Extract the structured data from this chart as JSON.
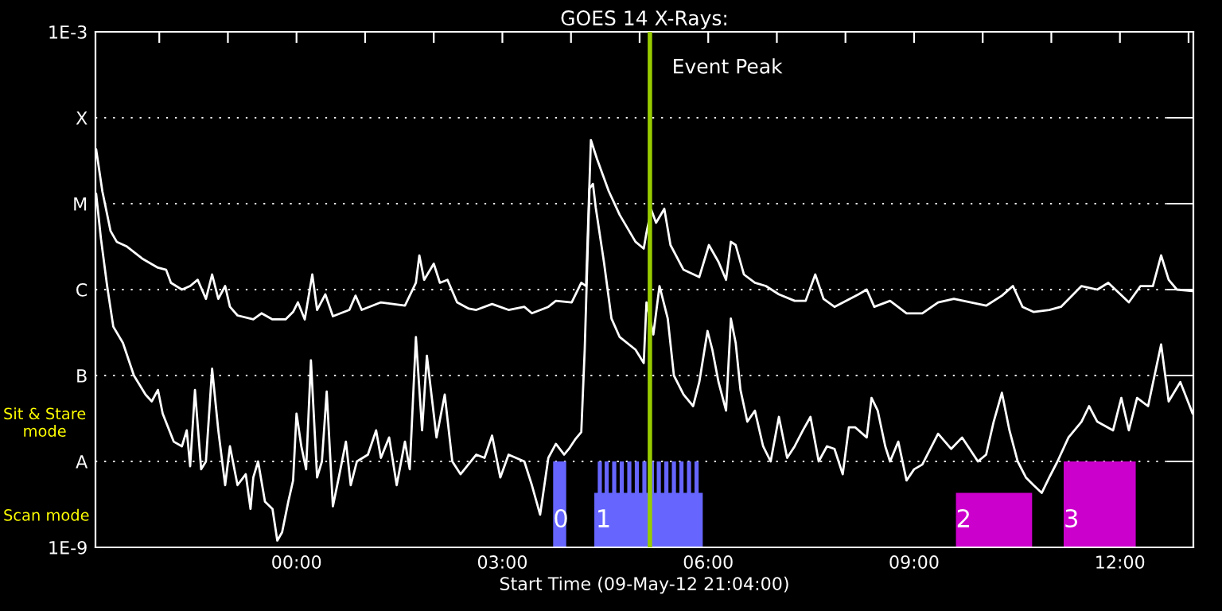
{
  "chart_data": {
    "type": "line",
    "title": "GOES 14 X-Rays:",
    "xlabel": "Start Time (09-May-12 21:04:00)",
    "log": "y",
    "grid": "y",
    "marker": "none",
    "line_style": "solid",
    "xlim": [
      -2.93,
      13.07
    ],
    "xticks": [
      {
        "value": -2,
        "label": null
      },
      {
        "value": -1,
        "label": null
      },
      {
        "value": 0,
        "label": "00:00"
      },
      {
        "value": 1,
        "label": null
      },
      {
        "value": 2,
        "label": null
      },
      {
        "value": 3,
        "label": "03:00"
      },
      {
        "value": 4,
        "label": null
      },
      {
        "value": 5,
        "label": null
      },
      {
        "value": 6,
        "label": "06:00"
      },
      {
        "value": 7,
        "label": null
      },
      {
        "value": 8,
        "label": null
      },
      {
        "value": 9,
        "label": "09:00"
      },
      {
        "value": 10,
        "label": null
      },
      {
        "value": 11,
        "label": null
      },
      {
        "value": 12,
        "label": "12:00"
      },
      {
        "value": 13,
        "label": null
      }
    ],
    "ylim": [
      1e-09,
      0.001
    ],
    "yticks": [
      {
        "value": 1e-09,
        "label": "1E-9"
      },
      {
        "value": 1e-08,
        "label": "A"
      },
      {
        "value": 1e-07,
        "label": "B"
      },
      {
        "value": 1e-06,
        "label": "C"
      },
      {
        "value": 1e-05,
        "label": "M"
      },
      {
        "value": 0.0001,
        "label": "X"
      },
      {
        "value": 0.001,
        "label": "1E-3"
      }
    ],
    "ref_lines": [
      {
        "axis": "x",
        "value": 5.15,
        "label": "Event Peak",
        "color": "#99cc00"
      }
    ],
    "annotations": [
      "Sit & Stare\nmode",
      "Scan mode",
      {
        "text": "0",
        "x": 3.74,
        "y": 1.5e-09
      },
      {
        "text": "1",
        "x": 4.36,
        "y": 1.5e-09
      },
      {
        "text": "2",
        "x": 9.61,
        "y": 1.5e-09
      },
      {
        "text": "3",
        "x": 11.18,
        "y": 1.5e-09
      }
    ],
    "series": [
      {
        "type": "area",
        "color": "#6666ff",
        "x": [
          3.74,
          3.74,
          3.93,
          3.93,
          4.34,
          4.34,
          4.39,
          4.39,
          4.45,
          4.45,
          4.49,
          4.49,
          4.55,
          4.55,
          4.6,
          4.6,
          4.66,
          4.66,
          4.71,
          4.71,
          4.77,
          4.77,
          4.82,
          4.82,
          4.88,
          4.88,
          4.93,
          4.93,
          4.99,
          4.99,
          5.04,
          5.04,
          5.1,
          5.1,
          5.15,
          5.15,
          5.21,
          5.21,
          5.25,
          5.25,
          5.31,
          5.31,
          5.36,
          5.36,
          5.42,
          5.42,
          5.47,
          5.47,
          5.53,
          5.53,
          5.58,
          5.58,
          5.64,
          5.64,
          5.69,
          5.69,
          5.75,
          5.75,
          5.8,
          5.8,
          5.86,
          5.86,
          5.92,
          5.92
        ],
        "values": [
          1e-09,
          1e-08,
          1e-08,
          1e-09,
          1e-09,
          4.3e-09,
          4.3e-09,
          1e-08,
          1e-08,
          4.3e-09,
          4.3e-09,
          1e-08,
          1e-08,
          4.3e-09,
          4.3e-09,
          1e-08,
          1e-08,
          4.3e-09,
          4.3e-09,
          1e-08,
          1e-08,
          4.3e-09,
          4.3e-09,
          1e-08,
          1e-08,
          4.3e-09,
          4.3e-09,
          1e-08,
          1e-08,
          4.3e-09,
          4.3e-09,
          1e-08,
          1e-08,
          4.3e-09,
          4.3e-09,
          1e-08,
          1e-08,
          4.3e-09,
          4.3e-09,
          1e-08,
          1e-08,
          4.3e-09,
          4.3e-09,
          1e-08,
          1e-08,
          4.3e-09,
          4.3e-09,
          1e-08,
          1e-08,
          4.3e-09,
          4.3e-09,
          1e-08,
          1e-08,
          4.3e-09,
          4.3e-09,
          1e-08,
          1e-08,
          4.3e-09,
          4.3e-09,
          1e-08,
          1e-08,
          4.3e-09,
          4.3e-09,
          1e-09
        ]
      },
      {
        "type": "area",
        "color": "#cc00cc",
        "x": [
          9.61,
          9.61,
          10.72,
          10.72,
          11.18,
          11.18,
          12.23,
          12.23
        ],
        "values": [
          1e-09,
          4.3e-09,
          4.3e-09,
          1e-09,
          1e-09,
          1e-08,
          1e-08,
          1e-09
        ]
      },
      {
        "color": "#ffffff",
        "x": [
          -2.92,
          -2.83,
          -2.71,
          -2.62,
          -2.48,
          -2.25,
          -2.02,
          -1.9,
          -1.83,
          -1.67,
          -1.55,
          -1.44,
          -1.32,
          -1.23,
          -1.14,
          -1.04,
          -0.97,
          -0.86,
          -0.63,
          -0.51,
          -0.35,
          -0.16,
          -0.05,
          0.02,
          0.12,
          0.23,
          0.3,
          0.42,
          0.53,
          0.77,
          0.86,
          0.95,
          1.23,
          1.58,
          1.74,
          1.79,
          1.86,
          2.0,
          2.09,
          2.2,
          2.34,
          2.51,
          2.62,
          2.85,
          3.09,
          3.32,
          3.43,
          3.67,
          3.78,
          4.01,
          4.15,
          4.22,
          4.29,
          4.38,
          4.55,
          4.71,
          4.94,
          5.06,
          5.1,
          5.17,
          5.24,
          5.36,
          5.45,
          5.64,
          5.87,
          6.01,
          6.15,
          6.26,
          6.33,
          6.4,
          6.52,
          6.68,
          6.84,
          7.03,
          7.26,
          7.42,
          7.56,
          7.68,
          7.84,
          8.19,
          8.31,
          8.42,
          8.65,
          8.89,
          9.12,
          9.35,
          9.58,
          10.05,
          10.28,
          10.44,
          10.58,
          10.74,
          10.97,
          11.14,
          11.44,
          11.67,
          11.83,
          12.13,
          12.3,
          12.48,
          12.6,
          12.71,
          12.83,
          13.06
        ],
        "values": [
          4.3e-05,
          1.4e-05,
          4.8e-06,
          3.6e-06,
          3.2e-06,
          2.3e-06,
          1.8e-06,
          1.7e-06,
          1.2e-06,
          1e-06,
          1.1e-06,
          1.3e-06,
          7.8e-07,
          1.5e-06,
          7.8e-07,
          1.1e-06,
          6.3e-07,
          5e-07,
          4.5e-07,
          5.3e-07,
          4.5e-07,
          4.5e-07,
          5.5e-07,
          7.1e-07,
          4.5e-07,
          1.5e-06,
          5.8e-07,
          8.8e-07,
          4.9e-07,
          5.8e-07,
          8.5e-07,
          5.8e-07,
          7.1e-07,
          6.5e-07,
          1.2e-06,
          2.5e-06,
          1.3e-06,
          2e-06,
          1.2e-06,
          1.3e-06,
          7.1e-07,
          6e-07,
          5.8e-07,
          6.8e-07,
          5.8e-07,
          6.3e-07,
          5.3e-07,
          6.3e-07,
          7.4e-07,
          7.1e-07,
          1.2e-06,
          1.1e-06,
          5.5e-05,
          3.3e-05,
          1.4e-05,
          7.4e-06,
          3.6e-06,
          3e-06,
          4.6e-06,
          8.5e-06,
          6e-06,
          8.7e-06,
          3.3e-06,
          1.7e-06,
          1.4e-06,
          3.3e-06,
          2.1e-06,
          1.3e-06,
          3.6e-06,
          3.3e-06,
          1.5e-06,
          1.2e-06,
          1.1e-06,
          8.8e-07,
          7.4e-07,
          7.4e-07,
          1.5e-06,
          7.8e-07,
          6.3e-07,
          8.8e-07,
          1e-06,
          6.3e-07,
          7.4e-07,
          5.3e-07,
          5.3e-07,
          7.1e-07,
          7.8e-07,
          6.5e-07,
          8.5e-07,
          1.1e-06,
          6.3e-07,
          5.5e-07,
          5.8e-07,
          6.3e-07,
          1.1e-06,
          1e-06,
          1.2e-06,
          7.1e-07,
          1.1e-06,
          1.1e-06,
          2.5e-06,
          1.3e-06,
          1e-06,
          9.6e-07
        ]
      },
      {
        "color": "#ffffff",
        "x": [
          -2.92,
          -2.85,
          -2.76,
          -2.67,
          -2.53,
          -2.37,
          -2.2,
          -2.11,
          -2.02,
          -1.95,
          -1.79,
          -1.67,
          -1.6,
          -1.55,
          -1.48,
          -1.39,
          -1.32,
          -1.23,
          -1.14,
          -1.04,
          -0.97,
          -0.86,
          -0.74,
          -0.67,
          -0.63,
          -0.56,
          -0.46,
          -0.35,
          -0.28,
          -0.21,
          -0.12,
          -0.05,
          0.0,
          0.07,
          0.14,
          0.21,
          0.3,
          0.37,
          0.44,
          0.53,
          0.63,
          0.72,
          0.79,
          0.88,
          1.04,
          1.16,
          1.23,
          1.35,
          1.46,
          1.58,
          1.65,
          1.74,
          1.83,
          1.9,
          2.04,
          2.16,
          2.27,
          2.39,
          2.62,
          2.74,
          2.85,
          2.97,
          3.09,
          3.32,
          3.43,
          3.55,
          3.67,
          3.78,
          3.9,
          3.97,
          4.06,
          4.15,
          4.2,
          4.27,
          4.32,
          4.36,
          4.48,
          4.59,
          4.71,
          4.94,
          5.06,
          5.1,
          5.2,
          5.29,
          5.41,
          5.5,
          5.64,
          5.78,
          5.87,
          5.99,
          6.06,
          6.15,
          6.26,
          6.33,
          6.4,
          6.47,
          6.57,
          6.68,
          6.8,
          6.91,
          7.03,
          7.15,
          7.26,
          7.38,
          7.49,
          7.61,
          7.73,
          7.84,
          7.96,
          8.05,
          8.14,
          8.31,
          8.38,
          8.47,
          8.58,
          8.65,
          8.77,
          8.89,
          9.0,
          9.12,
          9.35,
          9.54,
          9.7,
          9.81,
          9.93,
          10.05,
          10.16,
          10.28,
          10.39,
          10.51,
          10.63,
          10.74,
          10.86,
          10.97,
          11.09,
          11.25,
          11.44,
          11.55,
          11.67,
          11.9,
          12.02,
          12.13,
          12.25,
          12.41,
          12.6,
          12.71,
          12.88,
          13.06
        ],
        "values": [
          1.3e-05,
          3.9e-06,
          1.1e-06,
          3.7e-07,
          2.4e-07,
          1e-07,
          6e-08,
          5e-08,
          6.8e-08,
          3.6e-08,
          1.7e-08,
          1.5e-08,
          2.3e-08,
          8.8e-09,
          6.8e-08,
          8.1e-09,
          1e-08,
          1.2e-07,
          2.3e-08,
          5.3e-09,
          1.5e-08,
          5.3e-09,
          7.1e-09,
          2.8e-09,
          6.5e-09,
          1e-08,
          3.4e-09,
          2.8e-09,
          1.2e-09,
          1.5e-09,
          3.4e-09,
          6e-09,
          3.6e-08,
          1.5e-08,
          8.1e-09,
          1.5e-07,
          6.5e-09,
          1e-08,
          6.5e-08,
          3e-09,
          7.4e-09,
          1.7e-08,
          5.3e-09,
          1e-08,
          1.2e-08,
          2.3e-08,
          1.1e-08,
          1.9e-08,
          5.3e-09,
          1.7e-08,
          8.1e-09,
          2.8e-07,
          2.3e-08,
          1.7e-07,
          1.9e-08,
          6e-08,
          1e-08,
          7.1e-09,
          1.2e-08,
          1.1e-08,
          2e-08,
          6.5e-09,
          1.2e-08,
          1e-08,
          5.3e-09,
          2.4e-09,
          1.1e-08,
          1.6e-08,
          1.2e-08,
          1.4e-08,
          1.8e-08,
          2.2e-08,
          2e-07,
          1.5e-05,
          1.7e-05,
          9.1e-06,
          2.1e-06,
          4.6e-07,
          2.8e-07,
          2e-07,
          1.4e-07,
          7.1e-07,
          3e-07,
          1.1e-06,
          4.6e-07,
          1e-07,
          6e-08,
          4.4e-08,
          8.4e-08,
          3.3e-07,
          2e-07,
          8.4e-08,
          3.9e-08,
          4.6e-07,
          2.4e-07,
          6.8e-08,
          2.9e-08,
          3.9e-08,
          1.5e-08,
          1e-08,
          3.3e-08,
          1.1e-08,
          1.5e-08,
          2.3e-08,
          3.3e-08,
          1e-08,
          1.5e-08,
          1.4e-08,
          7.1e-09,
          2.5e-08,
          2.5e-08,
          1.9e-08,
          5.5e-08,
          3.9e-08,
          1.5e-08,
          1e-08,
          1.7e-08,
          6e-09,
          8.1e-09,
          9.2e-09,
          2.1e-08,
          1.4e-08,
          1.9e-08,
          1.4e-08,
          1e-08,
          1.2e-08,
          2.9e-08,
          6.3e-08,
          2.3e-08,
          1e-08,
          6.5e-09,
          5.3e-09,
          4.3e-09,
          6.5e-09,
          1e-08,
          1.9e-08,
          2.9e-08,
          4.4e-08,
          2.9e-08,
          2.3e-08,
          5.5e-08,
          2.3e-08,
          5.5e-08,
          4.4e-08,
          2.3e-07,
          5e-08,
          8.4e-08,
          3.6e-08
        ]
      }
    ]
  }
}
